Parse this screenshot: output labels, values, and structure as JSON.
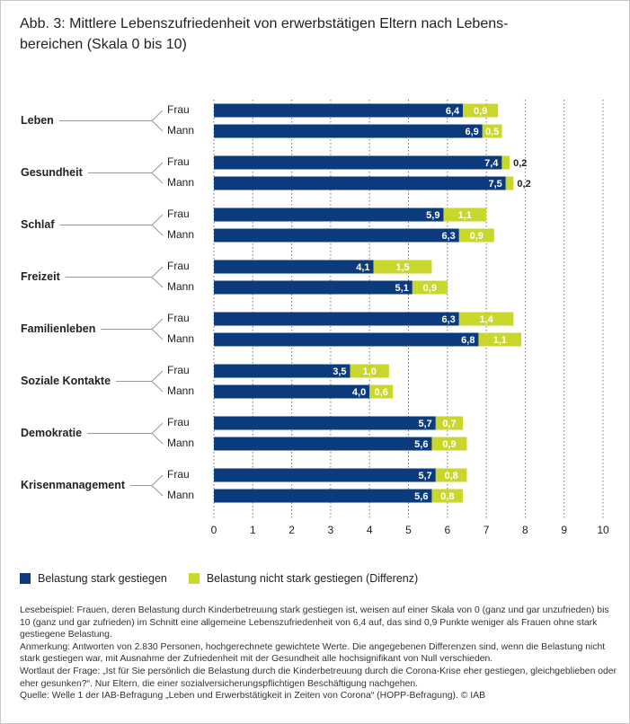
{
  "chart_data": {
    "type": "bar",
    "orientation": "horizontal",
    "stacked": true,
    "title": "Abb. 3: Mittlere Lebenszufriedenheit von erwerbstätigen Eltern nach Lebens-\nbereichen (Skala 0 bis 10)",
    "groups": [
      "Leben",
      "Gesundheit",
      "Schlaf",
      "Freizeit",
      "Familienleben",
      "Soziale Kontakte",
      "Demokratie",
      "Krisenmanagement"
    ],
    "categories": [
      "Frau",
      "Mann",
      "Frau",
      "Mann",
      "Frau",
      "Mann",
      "Frau",
      "Mann",
      "Frau",
      "Mann",
      "Frau",
      "Mann",
      "Frau",
      "Mann",
      "Frau",
      "Mann"
    ],
    "series": [
      {
        "name": "Belastung stark gestiegen",
        "color": "#0b3b7c",
        "values": [
          6.4,
          6.9,
          7.4,
          7.5,
          5.9,
          6.3,
          4.1,
          5.1,
          6.3,
          6.8,
          3.5,
          4.0,
          5.7,
          5.6,
          5.7,
          5.6
        ],
        "value_labels": [
          "6,4",
          "6,9",
          "7,4",
          "7,5",
          "5,9",
          "6,3",
          "4,1",
          "5,1",
          "6,3",
          "6,8",
          "3,5",
          "4,0",
          "5,7",
          "5,6",
          "5,7",
          "5,6"
        ]
      },
      {
        "name": "Belastung nicht stark gestiegen (Differenz)",
        "color": "#c9d72d",
        "values": [
          0.9,
          0.5,
          0.2,
          0.2,
          1.1,
          0.9,
          1.5,
          0.9,
          1.4,
          1.1,
          1.0,
          0.6,
          0.7,
          0.9,
          0.8,
          0.8
        ],
        "value_labels": [
          "0,9",
          "0,5",
          "0,2",
          "0,2",
          "1,1",
          "0,9",
          "1,5",
          "0,9",
          "1,4",
          "1,1",
          "1,0",
          "0,6",
          "0,7",
          "0,9",
          "0,8",
          "0,8"
        ]
      }
    ],
    "xlim": [
      0,
      10
    ],
    "xticks": [
      0,
      1,
      2,
      3,
      4,
      5,
      6,
      7,
      8,
      9,
      10
    ],
    "grid": true,
    "notes": [
      "Lesebeispiel: Frauen, deren Belastung durch Kinderbetreuung stark gestiegen ist, weisen auf einer Skala von 0 (ganz und gar unzufrieden) bis 10 (ganz und gar zufrieden) im Schnitt eine allgemeine Lebenszufriedenheit von 6,4 auf, das sind 0,9 Punkte weniger als Frauen ohne stark gestiegene Belastung.",
      "Anmerkung: Antworten von 2.830 Personen, hochgerechnete gewichtete Werte. Die angegebenen Differenzen sind, wenn die Belastung nicht stark gestiegen war, mit Ausnahme der Zufriedenheit mit der Gesundheit alle hochsignifikant von Null verschieden.",
      "Wortlaut der Frage: „Ist für Sie persönlich die Belastung durch die Kinderbetreuung durch die Corona-Krise eher gestiegen, gleichgeblieben oder eher gesunken?“. Nur Eltern, die einer sozialversicherungspflichtigen Beschäftigung nachgehen.",
      "Quelle: Welle 1 der IAB-Befragung „Leben und Erwerbstätigkeit in Zeiten von Corona“ (HOPP-Befragung). © IAB"
    ]
  }
}
